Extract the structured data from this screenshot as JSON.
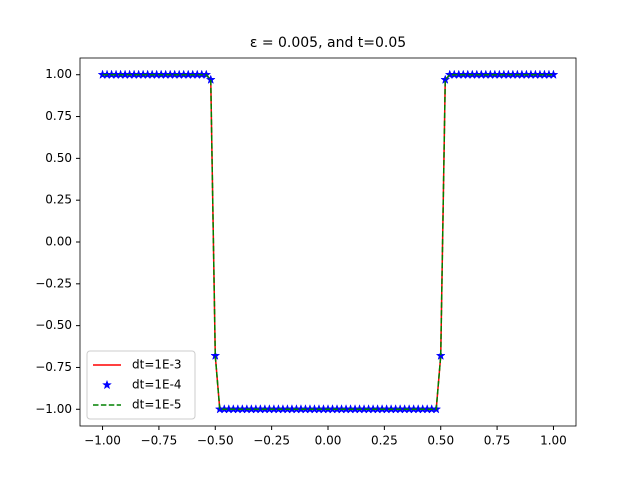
{
  "chart_data": {
    "type": "line",
    "title": "ε = 0.005, and t=0.05",
    "x": [
      -1,
      -0.98,
      -0.96,
      -0.94,
      -0.92,
      -0.9,
      -0.88,
      -0.86,
      -0.84,
      -0.82,
      -0.8,
      -0.78,
      -0.76,
      -0.74,
      -0.72,
      -0.7,
      -0.68,
      -0.66,
      -0.64,
      -0.62,
      -0.6,
      -0.58,
      -0.56,
      -0.54,
      -0.52,
      -0.5,
      -0.48,
      -0.46,
      -0.44,
      -0.42,
      -0.4,
      -0.38,
      -0.36,
      -0.34,
      -0.32,
      -0.3,
      -0.28,
      -0.26,
      -0.24,
      -0.22,
      -0.2,
      -0.18,
      -0.16,
      -0.14,
      -0.12,
      -0.1,
      -0.08,
      -0.06,
      -0.04,
      -0.02,
      0,
      0.02,
      0.04,
      0.06,
      0.08,
      0.1,
      0.12,
      0.14,
      0.16,
      0.18,
      0.2,
      0.22,
      0.24,
      0.26,
      0.28,
      0.3,
      0.32,
      0.34,
      0.36,
      0.38,
      0.4,
      0.42,
      0.44,
      0.46,
      0.48,
      0.5,
      0.52,
      0.54,
      0.56,
      0.58,
      0.6,
      0.62,
      0.64,
      0.66,
      0.68,
      0.7,
      0.72,
      0.74,
      0.76,
      0.78,
      0.8,
      0.82,
      0.84,
      0.86,
      0.88,
      0.9,
      0.92,
      0.94,
      0.96,
      0.98,
      1
    ],
    "series": [
      {
        "name": "dt=1E-3",
        "color": "#ff0000",
        "style": "solid",
        "values": [
          1,
          1,
          1,
          1,
          1,
          1,
          1,
          1,
          1,
          1,
          1,
          1,
          1,
          1,
          1,
          1,
          1,
          1,
          1,
          1,
          1,
          1,
          1,
          1,
          0.97,
          -0.68,
          -1,
          -1,
          -1,
          -1,
          -1,
          -1,
          -1,
          -1,
          -1,
          -1,
          -1,
          -1,
          -1,
          -1,
          -1,
          -1,
          -1,
          -1,
          -1,
          -1,
          -1,
          -1,
          -1,
          -1,
          -1,
          -1,
          -1,
          -1,
          -1,
          -1,
          -1,
          -1,
          -1,
          -1,
          -1,
          -1,
          -1,
          -1,
          -1,
          -1,
          -1,
          -1,
          -1,
          -1,
          -1,
          -1,
          -1,
          -1,
          -1,
          -0.68,
          0.97,
          1,
          1,
          1,
          1,
          1,
          1,
          1,
          1,
          1,
          1,
          1,
          1,
          1,
          1,
          1,
          1,
          1,
          1,
          1,
          1,
          1,
          1,
          1,
          1
        ]
      },
      {
        "name": "dt=1E-4",
        "color": "#0000ff",
        "style": "star",
        "values": [
          1,
          1,
          1,
          1,
          1,
          1,
          1,
          1,
          1,
          1,
          1,
          1,
          1,
          1,
          1,
          1,
          1,
          1,
          1,
          1,
          1,
          1,
          1,
          1,
          0.97,
          -0.68,
          -1,
          -1,
          -1,
          -1,
          -1,
          -1,
          -1,
          -1,
          -1,
          -1,
          -1,
          -1,
          -1,
          -1,
          -1,
          -1,
          -1,
          -1,
          -1,
          -1,
          -1,
          -1,
          -1,
          -1,
          -1,
          -1,
          -1,
          -1,
          -1,
          -1,
          -1,
          -1,
          -1,
          -1,
          -1,
          -1,
          -1,
          -1,
          -1,
          -1,
          -1,
          -1,
          -1,
          -1,
          -1,
          -1,
          -1,
          -1,
          -1,
          -0.68,
          0.97,
          1,
          1,
          1,
          1,
          1,
          1,
          1,
          1,
          1,
          1,
          1,
          1,
          1,
          1,
          1,
          1,
          1,
          1,
          1,
          1,
          1,
          1,
          1,
          1
        ]
      },
      {
        "name": "dt=1E-5",
        "color": "#008000",
        "style": "dashed",
        "values": [
          1,
          1,
          1,
          1,
          1,
          1,
          1,
          1,
          1,
          1,
          1,
          1,
          1,
          1,
          1,
          1,
          1,
          1,
          1,
          1,
          1,
          1,
          1,
          1,
          0.97,
          -0.68,
          -1,
          -1,
          -1,
          -1,
          -1,
          -1,
          -1,
          -1,
          -1,
          -1,
          -1,
          -1,
          -1,
          -1,
          -1,
          -1,
          -1,
          -1,
          -1,
          -1,
          -1,
          -1,
          -1,
          -1,
          -1,
          -1,
          -1,
          -1,
          -1,
          -1,
          -1,
          -1,
          -1,
          -1,
          -1,
          -1,
          -1,
          -1,
          -1,
          -1,
          -1,
          -1,
          -1,
          -1,
          -1,
          -1,
          -1,
          -1,
          -1,
          -0.68,
          0.97,
          1,
          1,
          1,
          1,
          1,
          1,
          1,
          1,
          1,
          1,
          1,
          1,
          1,
          1,
          1,
          1,
          1,
          1,
          1,
          1,
          1,
          1,
          1,
          1
        ]
      }
    ],
    "xlim": [
      -1.1,
      1.1
    ],
    "ylim": [
      -1.1,
      1.1
    ],
    "xticks": [
      {
        "value": -1,
        "label": "−1.00"
      },
      {
        "value": -0.75,
        "label": "−0.75"
      },
      {
        "value": -0.5,
        "label": "−0.50"
      },
      {
        "value": -0.25,
        "label": "−0.25"
      },
      {
        "value": 0,
        "label": "0.00"
      },
      {
        "value": 0.25,
        "label": "0.25"
      },
      {
        "value": 0.5,
        "label": "0.50"
      },
      {
        "value": 0.75,
        "label": "0.75"
      },
      {
        "value": 1,
        "label": "1.00"
      }
    ],
    "yticks": [
      {
        "value": -1,
        "label": "−1.00"
      },
      {
        "value": -0.75,
        "label": "−0.75"
      },
      {
        "value": -0.5,
        "label": "−0.50"
      },
      {
        "value": -0.25,
        "label": "−0.25"
      },
      {
        "value": 0,
        "label": "0.00"
      },
      {
        "value": 0.25,
        "label": "0.25"
      },
      {
        "value": 0.5,
        "label": "0.50"
      },
      {
        "value": 0.75,
        "label": "0.75"
      },
      {
        "value": 1,
        "label": "1.00"
      }
    ],
    "legend": "lower left"
  }
}
